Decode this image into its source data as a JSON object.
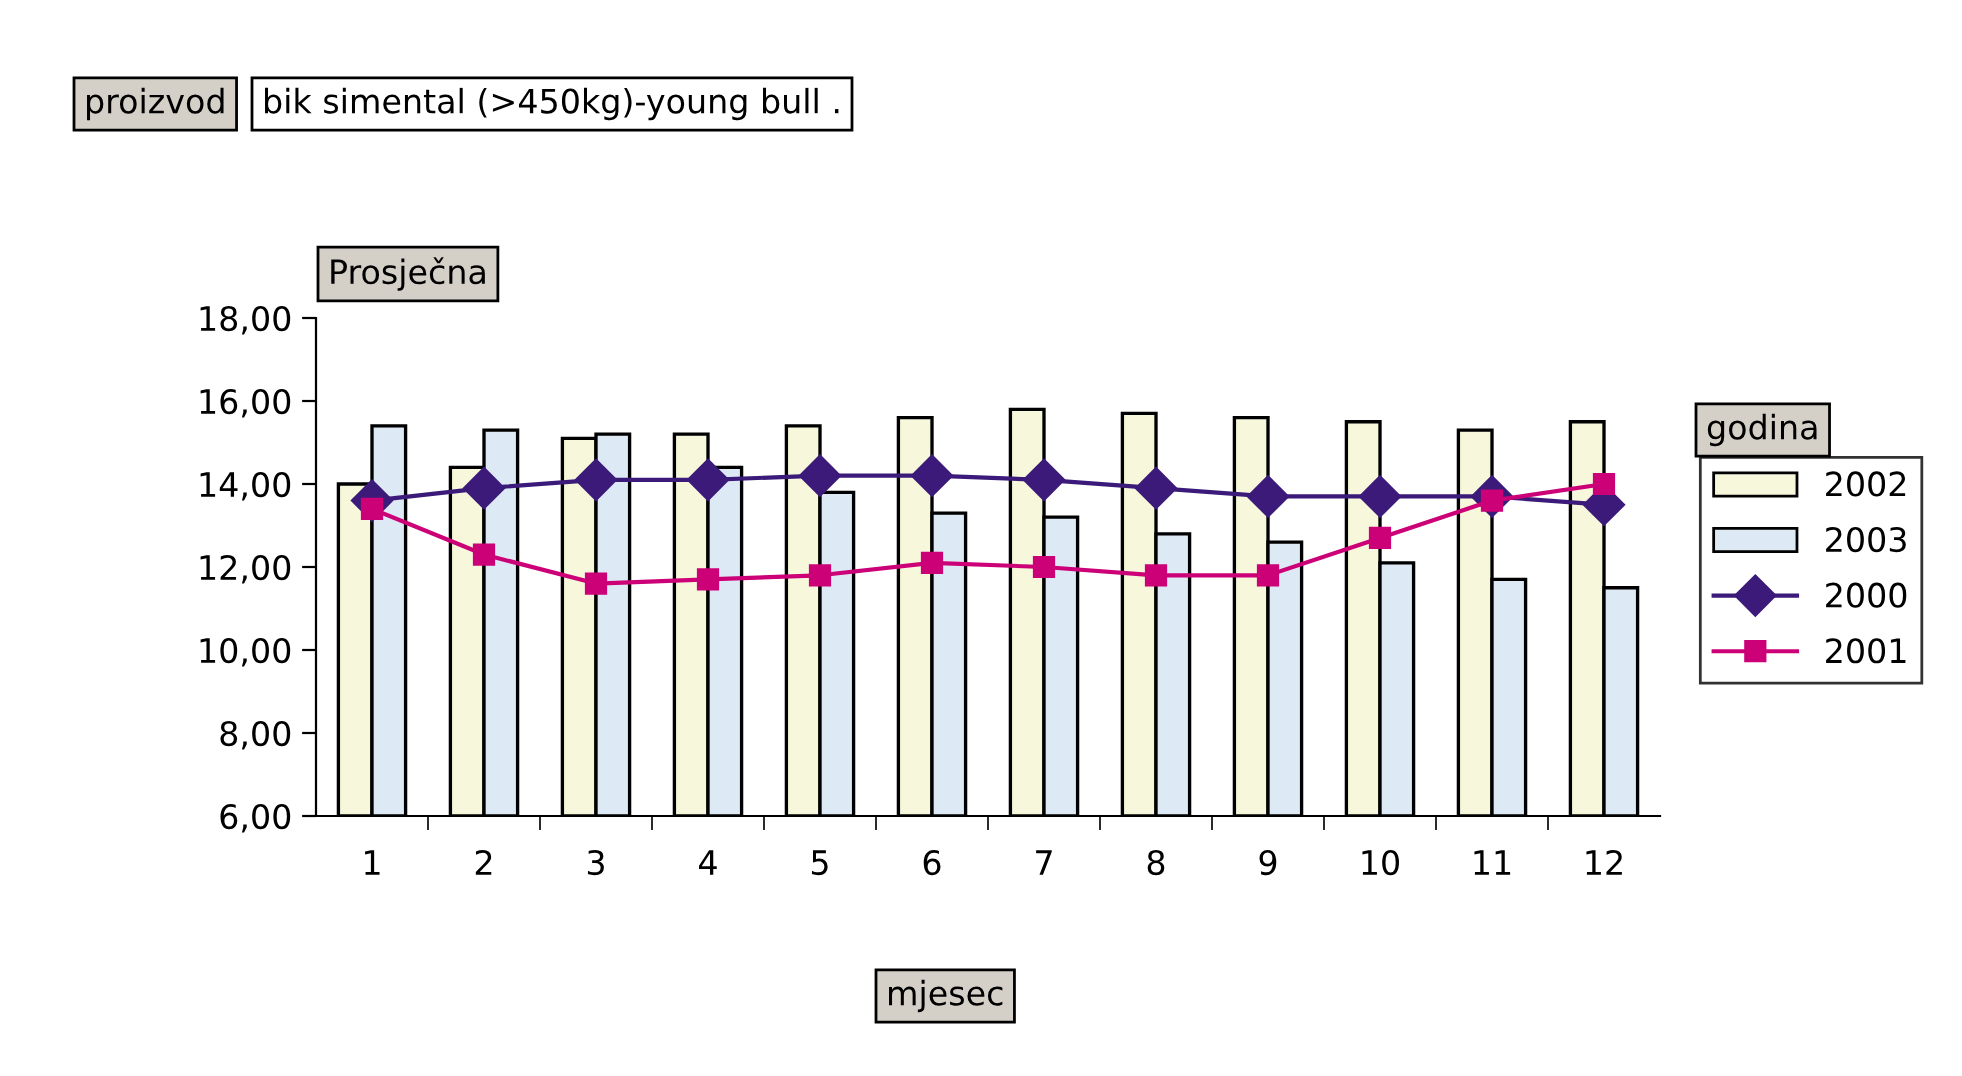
{
  "chart_data": {
    "type": "bar",
    "title": "proizvod",
    "subtitle": "bik simental (>450kg)-young bull .",
    "ylabel": "Prosječna",
    "xlabel": "mjesec",
    "legend_title": "godina",
    "categories": [
      "1",
      "2",
      "3",
      "4",
      "5",
      "6",
      "7",
      "8",
      "9",
      "10",
      "11",
      "12"
    ],
    "series": [
      {
        "name": "2002",
        "color": "#f7f7dc",
        "values": [
          14.0,
          14.4,
          15.1,
          15.2,
          15.4,
          15.6,
          15.8,
          15.7,
          15.6,
          15.5,
          15.3,
          15.5
        ]
      },
      {
        "name": "2003",
        "color": "#dde9f5",
        "values": [
          15.4,
          15.3,
          15.2,
          14.4,
          13.8,
          13.3,
          13.2,
          12.8,
          12.6,
          12.1,
          11.7,
          11.5
        ]
      },
      {
        "name": "2000",
        "type": "line",
        "color": "#3b1a7a",
        "marker": "diamond",
        "values": [
          13.6,
          13.9,
          14.1,
          14.1,
          14.2,
          14.2,
          14.1,
          13.9,
          13.7,
          13.7,
          13.7,
          13.5
        ]
      },
      {
        "name": "2001",
        "type": "line",
        "color": "#cc0077",
        "marker": "square",
        "values": [
          13.4,
          12.3,
          11.6,
          11.7,
          11.8,
          12.1,
          12.0,
          11.8,
          11.8,
          12.7,
          13.6,
          14.0
        ]
      }
    ],
    "ylim": [
      6,
      18
    ],
    "yticks": [
      {
        "value": 6,
        "label": "6,00"
      },
      {
        "value": 8,
        "label": "8,00"
      },
      {
        "value": 10,
        "label": "10,00"
      },
      {
        "value": 12,
        "label": "12,00"
      },
      {
        "value": 14,
        "label": "14,00"
      },
      {
        "value": 16,
        "label": "16,00"
      },
      {
        "value": 18,
        "label": "18,00"
      }
    ],
    "grid": false,
    "legend": "right"
  }
}
